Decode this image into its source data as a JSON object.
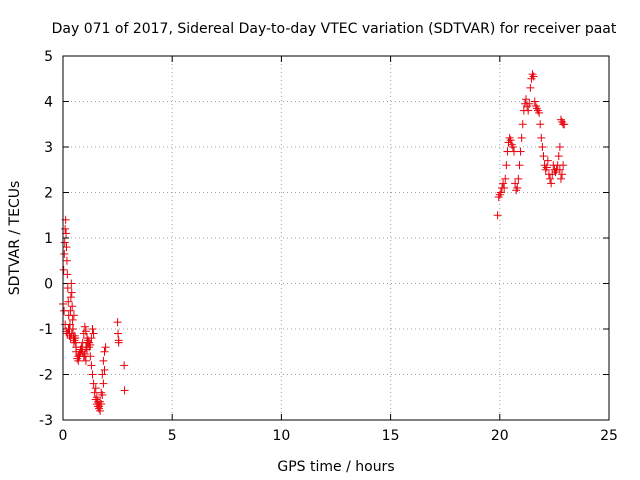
{
  "chart_data": {
    "type": "scatter",
    "title": "Day 071 of 2017, Sidereal Day-to-day VTEC variation (SDTVAR) for receiver paat",
    "xlabel": "GPS time / hours",
    "ylabel": "SDTVAR / TECUs",
    "xlim": [
      0,
      25
    ],
    "ylim": [
      -3,
      5
    ],
    "xticks": [
      0,
      5,
      10,
      15,
      20,
      25
    ],
    "yticks": [
      -3,
      -2,
      -1,
      0,
      1,
      2,
      3,
      4,
      5
    ],
    "grid": true,
    "marker": "plus",
    "color": "#e8000b",
    "series": [
      {
        "name": "SDTVAR",
        "x": [
          0.0,
          0.03,
          0.06,
          0.08,
          0.1,
          0.12,
          0.14,
          0.16,
          0.18,
          0.2,
          0.22,
          0.24,
          0.26,
          0.28,
          0.3,
          0.32,
          0.34,
          0.36,
          0.38,
          0.4,
          0.42,
          0.44,
          0.46,
          0.48,
          0.5,
          0.52,
          0.54,
          0.56,
          0.58,
          0.6,
          0.05,
          0.1,
          0.15,
          0.2,
          0.25,
          0.3,
          0.35,
          0.4,
          0.45,
          0.5,
          0.55,
          0.6,
          0.65,
          0.7,
          0.75,
          0.8,
          0.85,
          0.9,
          0.95,
          1.0,
          1.05,
          1.1,
          1.15,
          1.2,
          1.25,
          1.3,
          1.35,
          1.4,
          0.7,
          0.75,
          0.8,
          0.85,
          0.9,
          0.95,
          1.0,
          1.05,
          1.1,
          1.15,
          1.2,
          1.25,
          1.3,
          1.35,
          1.4,
          1.45,
          1.5,
          1.55,
          1.6,
          1.65,
          1.7,
          1.75,
          1.8,
          1.85,
          1.9,
          1.95,
          1.0,
          1.05,
          1.1,
          1.5,
          1.55,
          1.6,
          1.65,
          1.7,
          1.75,
          1.8,
          1.85,
          1.9,
          2.5,
          2.52,
          2.55,
          2.55,
          2.8,
          2.82,
          19.9,
          19.95,
          20.0,
          20.05,
          20.1,
          20.15,
          20.2,
          20.25,
          20.3,
          20.35,
          20.4,
          20.45,
          20.5,
          20.55,
          20.6,
          20.65,
          20.7,
          20.75,
          20.8,
          20.85,
          20.9,
          20.95,
          21.0,
          21.05,
          21.1,
          21.15,
          21.2,
          21.25,
          21.3,
          21.35,
          21.4,
          21.45,
          21.5,
          21.55,
          21.6,
          21.65,
          21.7,
          21.75,
          21.8,
          21.85,
          21.9,
          21.95,
          22.0,
          22.05,
          22.1,
          22.15,
          22.2,
          22.25,
          22.3,
          22.35,
          22.4,
          22.45,
          22.5,
          22.55,
          22.6,
          22.65,
          22.7,
          22.75,
          22.8,
          22.85,
          22.9,
          22.95,
          22.75,
          22.8,
          22.85,
          22.9
        ],
        "y": [
          -0.45,
          0.3,
          0.65,
          0.9,
          1.2,
          1.4,
          1.1,
          0.8,
          0.5,
          0.2,
          -0.1,
          -0.4,
          -0.7,
          -1.0,
          -1.1,
          -0.9,
          -0.6,
          -0.3,
          0.0,
          -0.2,
          -0.5,
          -0.8,
          -1.0,
          -1.2,
          -1.3,
          -1.25,
          -1.15,
          -1.2,
          -1.3,
          -1.4,
          -0.6,
          -0.9,
          -1.05,
          -1.1,
          -1.0,
          -1.15,
          -1.2,
          -1.1,
          -1.0,
          -0.7,
          -1.2,
          -1.5,
          -1.65,
          -1.7,
          -1.6,
          -1.5,
          -1.45,
          -1.5,
          -1.6,
          -1.55,
          -1.4,
          -1.3,
          -1.25,
          -1.3,
          -1.35,
          -1.2,
          -1.0,
          -1.1,
          -1.6,
          -1.55,
          -1.45,
          -1.4,
          -1.3,
          -1.1,
          -0.95,
          -1.05,
          -1.2,
          -1.3,
          -1.4,
          -1.6,
          -1.8,
          -2.0,
          -2.2,
          -2.4,
          -2.55,
          -2.65,
          -2.7,
          -2.75,
          -2.6,
          -2.4,
          -2.0,
          -1.7,
          -1.5,
          -1.4,
          -1.6,
          -1.7,
          -1.45,
          -2.3,
          -2.5,
          -2.6,
          -2.7,
          -2.8,
          -2.65,
          -2.45,
          -2.2,
          -1.9,
          -0.85,
          -1.1,
          -1.25,
          -1.3,
          -1.8,
          -2.35,
          1.5,
          1.9,
          1.95,
          2.0,
          2.1,
          2.2,
          2.1,
          2.3,
          2.6,
          2.9,
          3.1,
          3.2,
          3.15,
          3.05,
          3.0,
          2.9,
          2.2,
          2.05,
          2.1,
          2.3,
          2.6,
          2.9,
          3.2,
          3.5,
          3.8,
          3.95,
          4.05,
          3.9,
          3.8,
          3.95,
          4.3,
          4.5,
          4.6,
          4.55,
          4.0,
          3.9,
          3.85,
          3.8,
          3.75,
          3.5,
          3.2,
          3.0,
          2.8,
          2.6,
          2.5,
          2.55,
          2.7,
          2.4,
          2.3,
          2.2,
          2.4,
          2.6,
          2.5,
          2.45,
          2.5,
          2.6,
          2.8,
          3.0,
          3.6,
          3.55,
          3.5,
          3.5,
          2.5,
          2.3,
          2.4,
          2.6
        ]
      }
    ]
  }
}
